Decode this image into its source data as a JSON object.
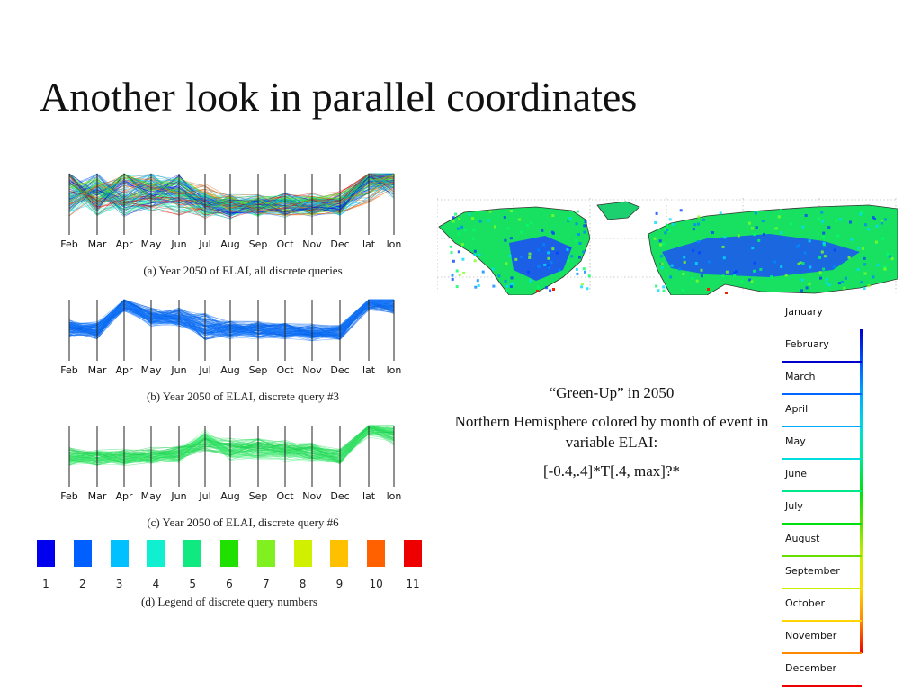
{
  "slide": {
    "title": "Another look in parallel coordinates"
  },
  "axes": [
    "Feb",
    "Mar",
    "Apr",
    "May",
    "Jun",
    "Jul",
    "Aug",
    "Sep",
    "Oct",
    "Nov",
    "Dec",
    "lat",
    "lon"
  ],
  "captions": {
    "a": "(a)  Year 2050 of ELAI, all discrete queries",
    "b": "(b)  Year 2050 of ELAI, discrete query #3",
    "c": "(c)  Year 2050 of ELAI, discrete query #6",
    "d": "(d)  Legend of discrete query numbers"
  },
  "legend": {
    "numbers": [
      "1",
      "2",
      "3",
      "4",
      "5",
      "6",
      "7",
      "8",
      "9",
      "10",
      "11"
    ],
    "colors": [
      "#0000ee",
      "#0060ff",
      "#00c0ff",
      "#10f0d0",
      "#10e880",
      "#20e000",
      "#80f020",
      "#d0f000",
      "#ffc000",
      "#ff6000",
      "#ee0000"
    ]
  },
  "text": {
    "line1": "“Green-Up” in 2050",
    "line2": "Northern Hemisphere colored by month of event in variable ELAI:",
    "line3": "[-0.4,.4]*T[.4, max]?*"
  },
  "month_scale": {
    "labels": [
      "January",
      "February",
      "March",
      "April",
      "May",
      "June",
      "July",
      "August",
      "September",
      "October",
      "November",
      "December"
    ],
    "tick_colors": [
      "#0000cc",
      "#0066ff",
      "#00aaff",
      "#00dddd",
      "#00e88a",
      "#00e010",
      "#66e000",
      "#c8ee00",
      "#ffd400",
      "#ff8800",
      "#ee0000"
    ]
  },
  "chart_data": [
    {
      "type": "parallel_coordinates",
      "panel": "a",
      "axes": [
        "Feb",
        "Mar",
        "Apr",
        "May",
        "Jun",
        "Jul",
        "Aug",
        "Sep",
        "Oct",
        "Nov",
        "Dec",
        "lat",
        "lon"
      ],
      "series": "all discrete queries 1-11"
    },
    {
      "type": "parallel_coordinates",
      "panel": "b",
      "axes": [
        "Feb",
        "Mar",
        "Apr",
        "May",
        "Jun",
        "Jul",
        "Aug",
        "Sep",
        "Oct",
        "Nov",
        "Dec",
        "lat",
        "lon"
      ],
      "series": "discrete query #3"
    },
    {
      "type": "parallel_coordinates",
      "panel": "c",
      "axes": [
        "Feb",
        "Mar",
        "Apr",
        "May",
        "Jun",
        "Jul",
        "Aug",
        "Sep",
        "Oct",
        "Nov",
        "Dec",
        "lat",
        "lon"
      ],
      "series": "discrete query #6"
    }
  ]
}
